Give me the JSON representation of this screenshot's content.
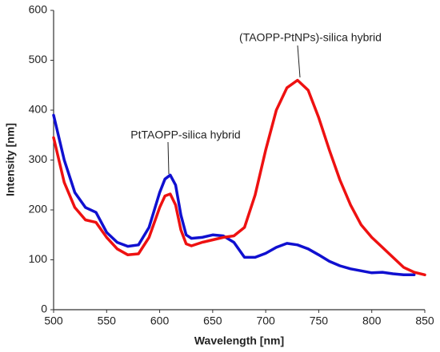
{
  "chart_data": {
    "type": "line",
    "x_label": "Wavelength [nm]",
    "y_label": "Intensity [nm]",
    "x": [
      500,
      510,
      520,
      530,
      540,
      550,
      560,
      570,
      580,
      590,
      600,
      605,
      610,
      615,
      620,
      625,
      630,
      640,
      650,
      660,
      670,
      680,
      690,
      700,
      710,
      720,
      730,
      740,
      750,
      760,
      770,
      780,
      790,
      800,
      810,
      820,
      830,
      840,
      850
    ],
    "series": [
      {
        "name": "PtTAOPP-silica hybrid",
        "color": "#1010d0",
        "values": [
          390,
          300,
          235,
          205,
          195,
          155,
          135,
          127,
          130,
          165,
          235,
          262,
          270,
          250,
          190,
          150,
          143,
          145,
          150,
          148,
          135,
          105,
          105,
          113,
          125,
          133,
          130,
          122,
          110,
          97,
          88,
          82,
          78,
          74,
          75,
          72,
          70,
          70,
          null
        ]
      },
      {
        "name": "(TAOPP-PtNPs)-silica hybrid",
        "color": "#ee1111",
        "values": [
          345,
          255,
          205,
          180,
          175,
          145,
          122,
          110,
          112,
          145,
          205,
          228,
          232,
          210,
          160,
          132,
          128,
          135,
          140,
          145,
          148,
          165,
          230,
          320,
          400,
          445,
          460,
          440,
          385,
          320,
          260,
          210,
          170,
          145,
          125,
          105,
          85,
          75,
          70
        ]
      }
    ],
    "xlim": [
      500,
      850
    ],
    "xticks": [
      500,
      550,
      600,
      650,
      700,
      750,
      800,
      850
    ],
    "ylim": [
      0,
      600
    ],
    "yticks": [
      0,
      100,
      200,
      300,
      400,
      500,
      600
    ],
    "grid": false
  }
}
